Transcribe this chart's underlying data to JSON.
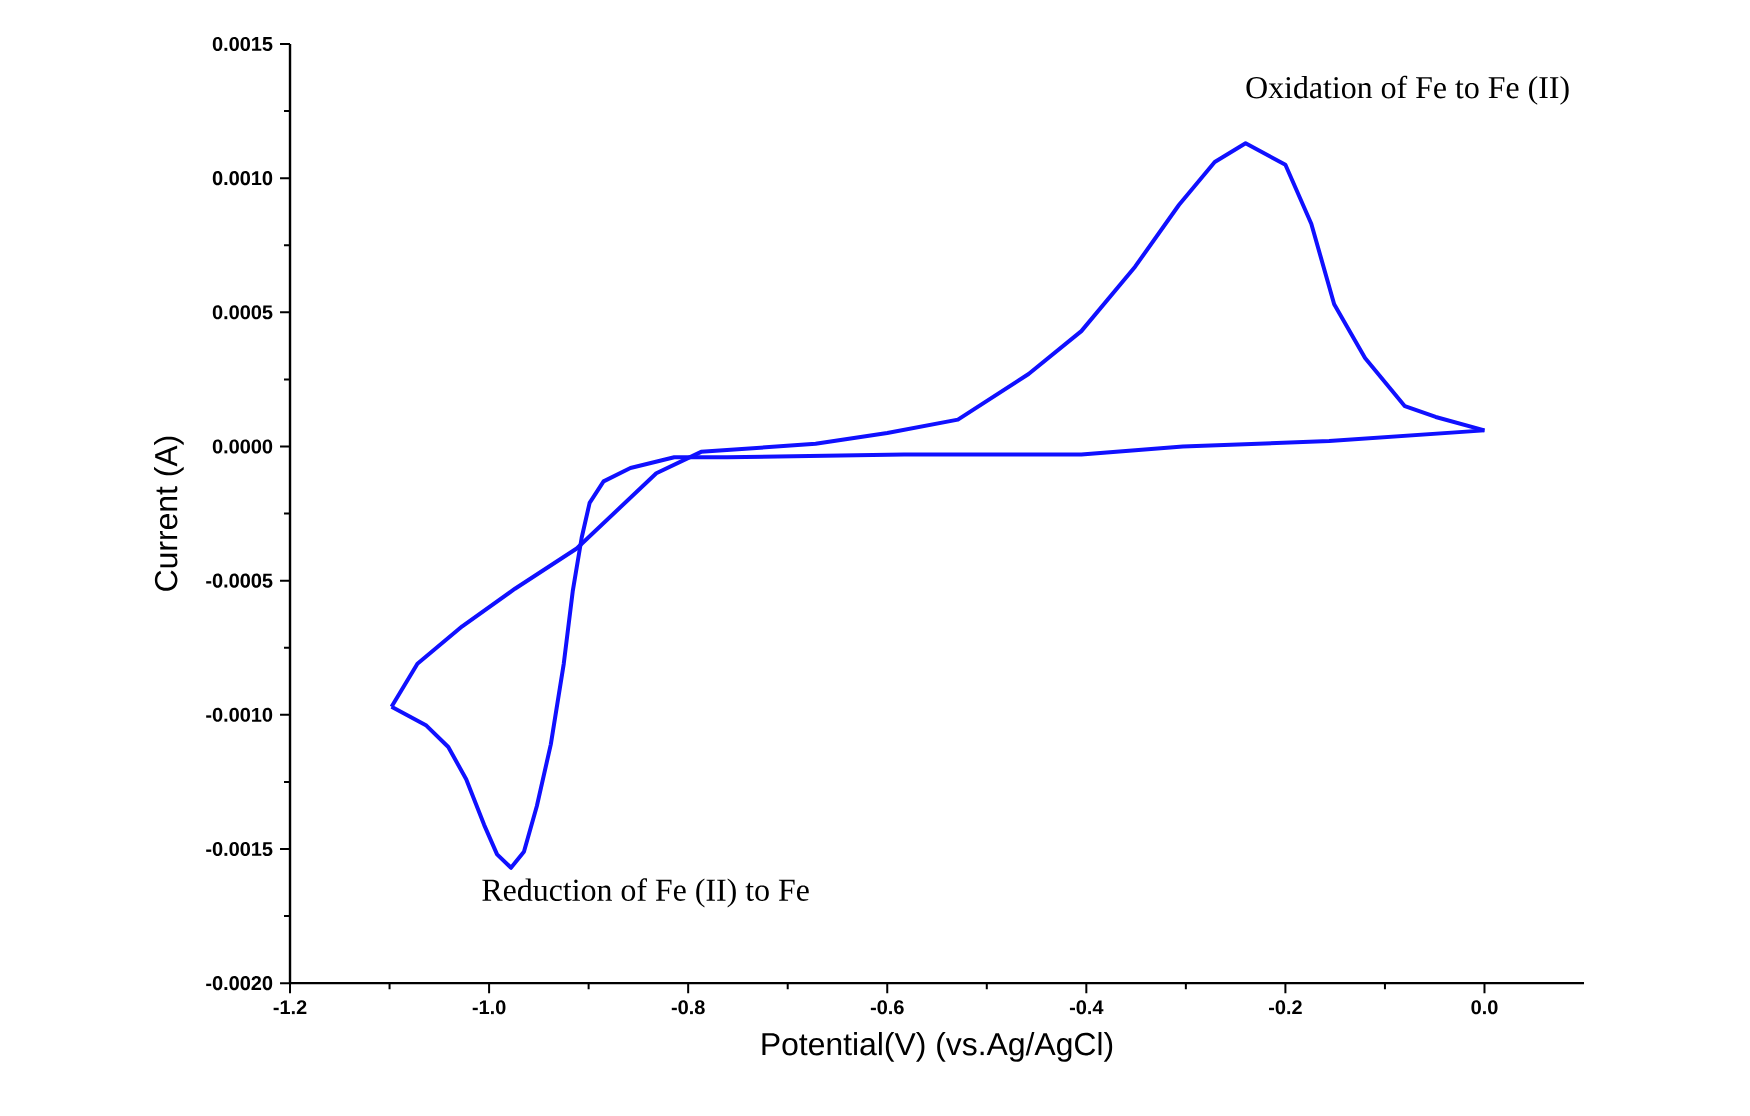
{
  "chart_data": {
    "type": "line",
    "xlabel": "Potential(V) (vs.Ag/AgCl)",
    "ylabel": "Current (A)",
    "xlim": [
      -1.2,
      0.1
    ],
    "ylim": [
      -0.002,
      0.0015
    ],
    "xticks": [
      {
        "value": -1.2,
        "label": "-1.2"
      },
      {
        "value": -1.0,
        "label": "-1.0"
      },
      {
        "value": -0.8,
        "label": "-0.8"
      },
      {
        "value": -0.6,
        "label": "-0.6"
      },
      {
        "value": -0.4,
        "label": "-0.4"
      },
      {
        "value": -0.2,
        "label": "-0.2"
      },
      {
        "value": 0.0,
        "label": "0.0"
      }
    ],
    "yticks": [
      {
        "value": -0.002,
        "label": "-0.0020"
      },
      {
        "value": -0.0015,
        "label": "-0.0015"
      },
      {
        "value": -0.001,
        "label": "-0.0010"
      },
      {
        "value": -0.0005,
        "label": "-0.0005"
      },
      {
        "value": 0.0,
        "label": "0.0000"
      },
      {
        "value": 0.0005,
        "label": "0.0005"
      },
      {
        "value": 0.001,
        "label": "0.0010"
      },
      {
        "value": 0.0015,
        "label": "0.0015"
      }
    ],
    "series": [
      {
        "color": "#1010ff",
        "x": [
          0.0,
          -0.156,
          -0.303,
          -0.405,
          -0.583,
          -0.761,
          -0.814,
          -0.858,
          -0.885,
          -0.899,
          -0.907,
          -0.916,
          -0.925,
          -0.938,
          -0.952,
          -0.965,
          -0.978,
          -0.992,
          -1.005,
          -1.023,
          -1.041,
          -1.063,
          -1.098
        ],
        "values": [
          6e-05,
          2e-05,
          0.0,
          -3e-05,
          -3e-05,
          -4e-05,
          -4e-05,
          -8e-05,
          -0.00013,
          -0.00021,
          -0.00034,
          -0.00054,
          -0.00081,
          -0.00111,
          -0.00134,
          -0.00151,
          -0.00157,
          -0.00152,
          -0.00141,
          -0.00124,
          -0.00112,
          -0.00104,
          -0.00097
        ]
      },
      {
        "color": "#1010ff",
        "x": [
          -1.098,
          -1.072,
          -1.027,
          -0.974,
          -0.912,
          -0.872,
          -0.832,
          -0.787,
          -0.672,
          -0.6,
          -0.529,
          -0.458,
          -0.405,
          -0.351,
          -0.307,
          -0.271,
          -0.24,
          -0.2,
          -0.174,
          -0.151,
          -0.12,
          -0.08,
          -0.049,
          0.0
        ],
        "values": [
          -0.00097,
          -0.00081,
          -0.00067,
          -0.00053,
          -0.00038,
          -0.00024,
          -0.0001,
          -2e-05,
          1e-05,
          5e-05,
          0.0001,
          0.00027,
          0.00043,
          0.00067,
          0.0009,
          0.00106,
          0.00113,
          0.00105,
          0.00083,
          0.00053,
          0.00033,
          0.00015,
          0.00011,
          6e-05
        ]
      }
    ],
    "annotations": [
      {
        "text": "Oxidation of Fe to Fe (II)",
        "x": -0.24,
        "y": 0.00113
      },
      {
        "text": "Reduction of Fe (II) to Fe",
        "x": -0.978,
        "y": -0.00157
      }
    ]
  }
}
